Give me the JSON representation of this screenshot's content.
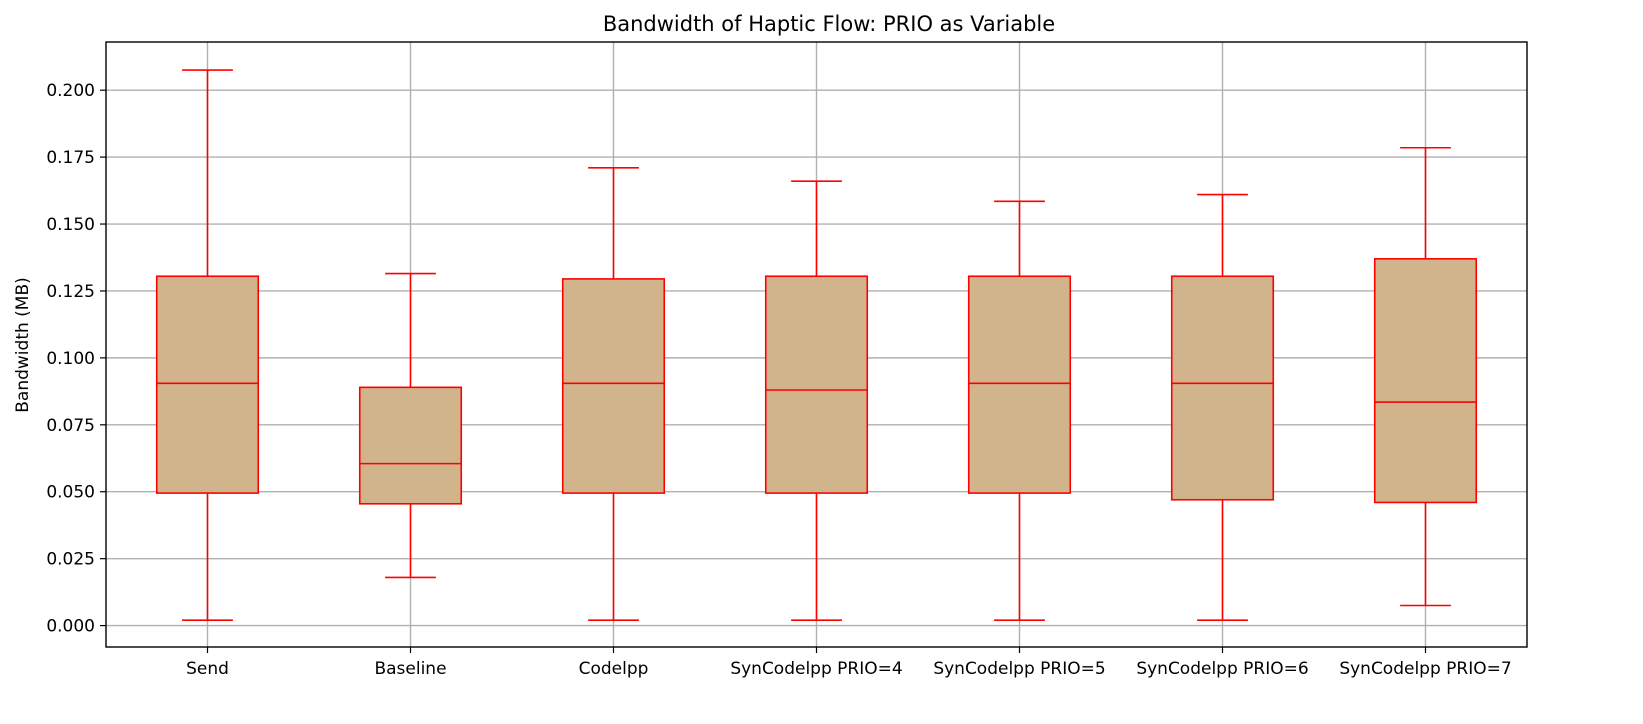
{
  "chart_data": {
    "type": "box",
    "title": "Bandwidth of Haptic Flow: PRIO as Variable",
    "xlabel": "",
    "ylabel": "Bandwidth (MB)",
    "ylim": [
      -0.008,
      0.218
    ],
    "yticks": [
      "0.000",
      "0.025",
      "0.050",
      "0.075",
      "0.100",
      "0.125",
      "0.150",
      "0.175",
      "0.200"
    ],
    "grid": true,
    "colors": {
      "box_fill": "#d2b48c",
      "box_edge": "#ff0000",
      "grid": "#b0b0b0"
    },
    "categories": [
      "Send",
      "Baseline",
      "Codelpp",
      "SynCodelpp PRIO=4",
      "SynCodelpp PRIO=5",
      "SynCodelpp PRIO=6",
      "SynCodelpp PRIO=7"
    ],
    "boxes": [
      {
        "whislo": 0.002,
        "q1": 0.0495,
        "med": 0.0905,
        "q3": 0.1305,
        "whishi": 0.2075
      },
      {
        "whislo": 0.018,
        "q1": 0.0455,
        "med": 0.0605,
        "q3": 0.089,
        "whishi": 0.1315
      },
      {
        "whislo": 0.002,
        "q1": 0.0495,
        "med": 0.0905,
        "q3": 0.1295,
        "whishi": 0.171
      },
      {
        "whislo": 0.002,
        "q1": 0.0495,
        "med": 0.088,
        "q3": 0.1305,
        "whishi": 0.166
      },
      {
        "whislo": 0.002,
        "q1": 0.0495,
        "med": 0.0905,
        "q3": 0.1305,
        "whishi": 0.1585
      },
      {
        "whislo": 0.002,
        "q1": 0.047,
        "med": 0.0905,
        "q3": 0.1305,
        "whishi": 0.161
      },
      {
        "whislo": 0.0075,
        "q1": 0.046,
        "med": 0.0835,
        "q3": 0.137,
        "whishi": 0.1785
      }
    ]
  }
}
